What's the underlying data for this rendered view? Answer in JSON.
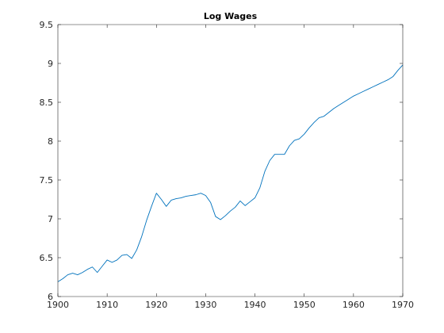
{
  "chart_data": {
    "type": "line",
    "title": "Log Wages",
    "xlabel": "",
    "ylabel": "",
    "xlim": [
      1900,
      1970
    ],
    "ylim": [
      6,
      9.5
    ],
    "xticks": [
      1900,
      1910,
      1920,
      1930,
      1940,
      1950,
      1960,
      1970
    ],
    "xtick_labels": [
      "1900",
      "1910",
      "1920",
      "1930",
      "1940",
      "1950",
      "1960",
      "1970"
    ],
    "yticks": [
      6,
      6.5,
      7,
      7.5,
      8,
      8.5,
      9,
      9.5
    ],
    "ytick_labels": [
      "6",
      "6.5",
      "7",
      "7.5",
      "8",
      "8.5",
      "9",
      "9.5"
    ],
    "grid": false,
    "line_color": "#0072bd",
    "axis_color": "#262626",
    "series": [
      {
        "x": [
          1900,
          1901,
          1902,
          1903,
          1904,
          1905,
          1906,
          1907,
          1908,
          1909,
          1910,
          1911,
          1912,
          1913,
          1914,
          1915,
          1916,
          1917,
          1918,
          1919,
          1920,
          1921,
          1922,
          1923,
          1924,
          1925,
          1926,
          1927,
          1928,
          1929,
          1930,
          1931,
          1932,
          1933,
          1934,
          1935,
          1936,
          1937,
          1938,
          1939,
          1940,
          1941,
          1942,
          1943,
          1944,
          1945,
          1946,
          1947,
          1948,
          1949,
          1950,
          1951,
          1952,
          1953,
          1954,
          1955,
          1956,
          1957,
          1958,
          1959,
          1960,
          1961,
          1962,
          1963,
          1964,
          1965,
          1966,
          1967,
          1968,
          1969,
          1970
        ],
        "values": [
          6.19,
          6.23,
          6.28,
          6.3,
          6.28,
          6.31,
          6.35,
          6.38,
          6.31,
          6.39,
          6.47,
          6.44,
          6.47,
          6.53,
          6.54,
          6.49,
          6.6,
          6.77,
          6.98,
          7.16,
          7.33,
          7.25,
          7.16,
          7.24,
          7.26,
          7.27,
          7.29,
          7.3,
          7.31,
          7.33,
          7.3,
          7.21,
          7.03,
          6.99,
          7.04,
          7.1,
          7.15,
          7.23,
          7.17,
          7.22,
          7.27,
          7.4,
          7.61,
          7.75,
          7.83,
          7.83,
          7.83,
          7.94,
          8.01,
          8.03,
          8.09,
          8.17,
          8.24,
          8.3,
          8.32,
          8.37,
          8.42,
          8.46,
          8.5,
          8.54,
          8.58,
          8.61,
          8.64,
          8.67,
          8.7,
          8.73,
          8.76,
          8.79,
          8.83,
          8.91,
          8.98
        ]
      }
    ]
  }
}
